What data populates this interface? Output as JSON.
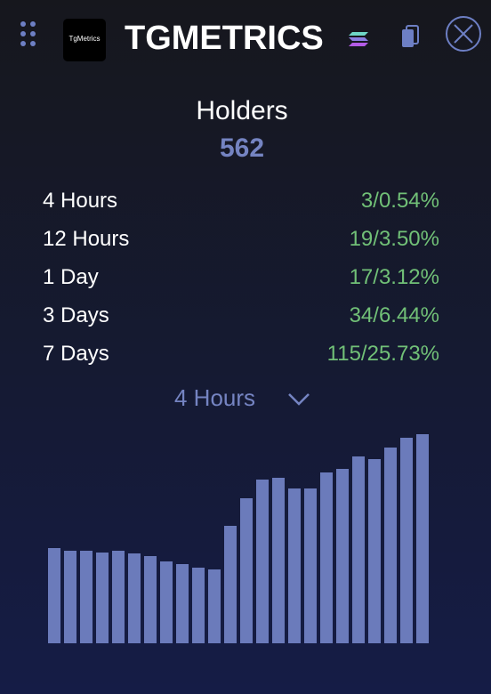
{
  "header": {
    "logo_text": "TgMetrics",
    "title": "TGMETRICS"
  },
  "summary": {
    "label": "Holders",
    "value": "562"
  },
  "rows": [
    [
      "4 Hours",
      "3/0.54%"
    ],
    [
      "12 Hours",
      "19/3.50%"
    ],
    [
      "1 Day",
      "17/3.12%"
    ],
    [
      "3 Days",
      "34/6.44%"
    ],
    [
      "7 Days",
      "115/25.73%"
    ]
  ],
  "period_selector": "4 Hours",
  "chart_data": {
    "type": "bar",
    "color": "#6b7bbb",
    "values": [
      107,
      104,
      104,
      102,
      104,
      101,
      98,
      92,
      89,
      85,
      83,
      132,
      163,
      184,
      186,
      174,
      174,
      192,
      196,
      210,
      207,
      220,
      231,
      235
    ]
  }
}
